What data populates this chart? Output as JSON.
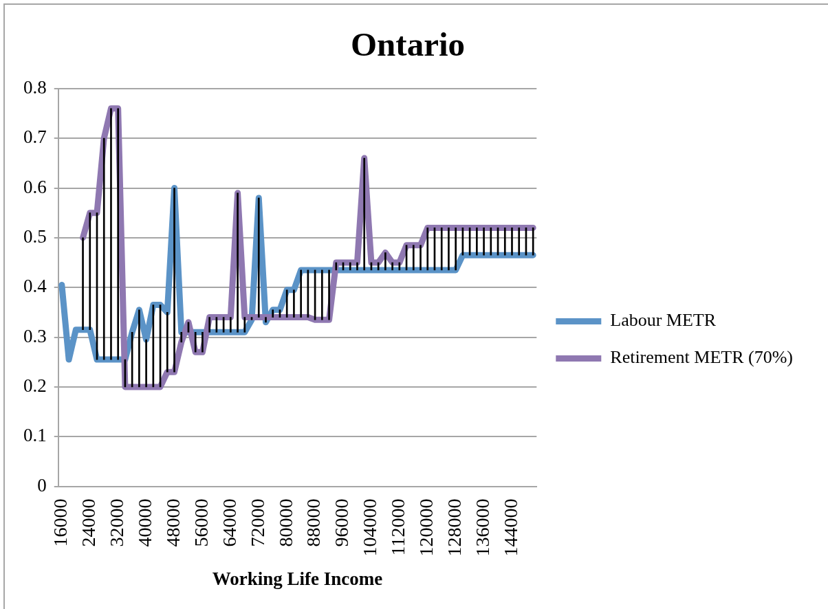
{
  "chart_data": {
    "type": "line",
    "title": "Ontario",
    "xlabel": "Working Life Income",
    "categories": [
      "16000",
      null,
      null,
      null,
      "24000",
      null,
      null,
      null,
      "32000",
      null,
      null,
      null,
      "40000",
      null,
      null,
      null,
      "48000",
      null,
      null,
      null,
      "56000",
      null,
      null,
      null,
      "64000",
      null,
      null,
      null,
      "72000",
      null,
      null,
      null,
      "80000",
      null,
      null,
      null,
      "88000",
      null,
      null,
      null,
      "96000",
      null,
      null,
      null,
      "104000",
      null,
      null,
      null,
      "112000",
      null,
      null,
      null,
      "120000",
      null,
      null,
      null,
      "128000",
      null,
      null,
      null,
      "136000",
      null,
      null,
      null,
      "144000",
      null,
      null,
      null
    ],
    "series": [
      {
        "name": "Labour METR",
        "color": "#5b93c7",
        "values": [
          0.405,
          0.255,
          0.315,
          0.315,
          0.315,
          0.255,
          0.255,
          0.255,
          0.255,
          0.255,
          0.31,
          0.355,
          0.295,
          0.365,
          0.365,
          0.35,
          0.6,
          0.31,
          0.31,
          0.31,
          0.31,
          0.31,
          0.31,
          0.31,
          0.31,
          0.31,
          0.31,
          0.335,
          0.58,
          0.33,
          0.355,
          0.355,
          0.395,
          0.395,
          0.435,
          0.435,
          0.435,
          0.435,
          0.435,
          0.435,
          0.435,
          0.435,
          0.435,
          0.435,
          0.435,
          0.435,
          0.435,
          0.435,
          0.435,
          0.435,
          0.435,
          0.435,
          0.435,
          0.435,
          0.435,
          0.435,
          0.435,
          0.465,
          0.465,
          0.465,
          0.465,
          0.465,
          0.465,
          0.465,
          0.465,
          0.465,
          0.465,
          0.465
        ]
      },
      {
        "name": "Retirement METR (70%)",
        "color": "#8f78b1",
        "values": [
          null,
          null,
          null,
          0.5,
          0.55,
          0.55,
          0.7,
          0.76,
          0.76,
          0.2,
          0.2,
          0.2,
          0.2,
          0.2,
          0.2,
          0.23,
          0.23,
          0.29,
          0.33,
          0.27,
          0.27,
          0.34,
          0.34,
          0.34,
          0.34,
          0.59,
          0.34,
          0.34,
          0.34,
          0.34,
          0.34,
          0.34,
          0.34,
          0.34,
          0.34,
          0.34,
          0.335,
          0.335,
          0.335,
          0.45,
          0.45,
          0.45,
          0.45,
          0.66,
          0.45,
          0.45,
          0.47,
          0.45,
          0.45,
          0.485,
          0.485,
          0.485,
          0.52,
          0.52,
          0.52,
          0.52,
          0.52,
          0.52,
          0.52,
          0.52,
          0.52,
          0.52,
          0.52,
          0.52,
          0.52,
          0.52,
          0.52,
          0.52
        ]
      },
      {
        "type": "bar",
        "color": "#000000",
        "base": [
          null,
          null,
          null,
          0.315,
          0.315,
          0.255,
          0.255,
          0.255,
          0.255,
          0.2,
          0.2,
          0.2,
          0.2,
          0.2,
          0.2,
          0.23,
          0.23,
          0.29,
          0.31,
          0.27,
          0.27,
          0.31,
          0.31,
          0.31,
          0.31,
          0.31,
          0.31,
          0.335,
          0.34,
          0.33,
          0.34,
          0.34,
          0.34,
          0.34,
          0.34,
          0.34,
          0.335,
          0.335,
          0.335,
          0.435,
          0.435,
          0.435,
          0.435,
          0.435,
          0.435,
          0.435,
          0.435,
          0.435,
          0.435,
          0.435,
          0.435,
          0.435,
          0.435,
          0.435,
          0.435,
          0.435,
          0.435,
          0.465,
          0.465,
          0.465,
          0.465,
          0.465,
          0.465,
          0.465,
          0.465,
          0.465,
          0.465,
          0.465
        ],
        "values": [
          null,
          null,
          null,
          0.185,
          0.235,
          0.295,
          0.445,
          0.505,
          0.505,
          0.055,
          0.11,
          0.155,
          0.095,
          0.165,
          0.165,
          0.12,
          0.37,
          0.02,
          0.02,
          0.04,
          0.04,
          0.03,
          0.03,
          0.03,
          0.03,
          0.28,
          0.03,
          0.005,
          0.24,
          0.01,
          0.015,
          0.015,
          0.055,
          0.055,
          0.095,
          0.095,
          0.1,
          0.1,
          0.1,
          0.015,
          0.015,
          0.015,
          0.015,
          0.225,
          0.015,
          0.015,
          0.035,
          0.015,
          0.015,
          0.05,
          0.05,
          0.05,
          0.085,
          0.085,
          0.085,
          0.085,
          0.085,
          0.055,
          0.055,
          0.055,
          0.055,
          0.055,
          0.055,
          0.055,
          0.055,
          0.055,
          0.055,
          0.055
        ]
      }
    ],
    "ylim": [
      0,
      0.8
    ],
    "yticks": [
      0,
      0.1,
      0.2,
      0.3,
      0.4,
      0.5,
      0.6,
      0.7,
      0.8
    ],
    "grid": "y",
    "legend": "right",
    "marker": "none"
  }
}
